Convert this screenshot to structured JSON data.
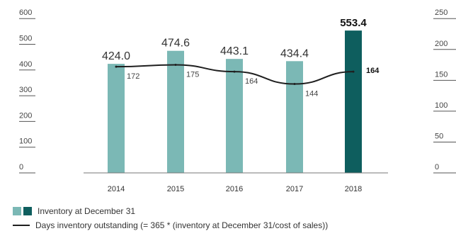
{
  "chart_data": {
    "type": "bar",
    "categories": [
      "2014",
      "2015",
      "2016",
      "2017",
      "2018"
    ],
    "series": [
      {
        "name": "Inventory at December 31",
        "values": [
          424.0,
          474.6,
          443.1,
          434.4,
          553.4
        ],
        "value_labels": [
          "424.0",
          "474.6",
          "443.1",
          "434.4",
          "553.4"
        ],
        "colors": [
          "#7bb8b5",
          "#7bb8b5",
          "#7bb8b5",
          "#7bb8b5",
          "#0e5e5e"
        ],
        "axis": "left"
      },
      {
        "name": "Days inventory outstanding (= 365 * (inventory at December 31/cost of sales))",
        "type": "line",
        "values": [
          172,
          175,
          164,
          144,
          164
        ],
        "value_labels": [
          "172",
          "175",
          "164",
          "144",
          "164"
        ],
        "color": "#1f1f1f",
        "axis": "right"
      }
    ],
    "y_left": {
      "ticks": [
        "600",
        "500",
        "400",
        "300",
        "200",
        "100",
        "0"
      ],
      "ylim": [
        0,
        600
      ]
    },
    "y_right": {
      "ticks": [
        "250",
        "200",
        "150",
        "100",
        "50",
        "0"
      ],
      "ylim": [
        0,
        250
      ]
    },
    "highlight_category": "2018",
    "legend_position": "bottom-left",
    "grid": false
  },
  "legend": {
    "bars_label": "Inventory at December 31",
    "line_label": "Days inventory outstanding (= 365 * (inventory at December 31/cost of sales))",
    "bar_colors": [
      "#7bb8b5",
      "#0e5e5e"
    ],
    "line_color": "#1f1f1f"
  }
}
